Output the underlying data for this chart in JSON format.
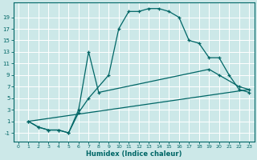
{
  "xlabel": "Humidex (Indice chaleur)",
  "bg_color": "#cce8e8",
  "grid_color": "#b0d8d8",
  "line_color": "#006666",
  "xlim": [
    -0.5,
    23.5
  ],
  "ylim": [
    -2.5,
    21.5
  ],
  "xticks": [
    0,
    1,
    2,
    3,
    4,
    5,
    6,
    7,
    8,
    9,
    10,
    11,
    12,
    13,
    14,
    15,
    16,
    17,
    18,
    19,
    20,
    21,
    22,
    23
  ],
  "yticks": [
    -1,
    1,
    3,
    5,
    7,
    9,
    11,
    13,
    15,
    17,
    19
  ],
  "line1_x": [
    1,
    2,
    3,
    4,
    5,
    6,
    7,
    9,
    10,
    11,
    12,
    13,
    14,
    15,
    16,
    17,
    18,
    19,
    20,
    21,
    22,
    23
  ],
  "line1_y": [
    1,
    0,
    -0.5,
    -0.5,
    -1,
    2.5,
    5,
    9,
    17,
    20,
    20,
    20.5,
    20.5,
    20,
    19,
    15,
    14.5,
    12,
    12,
    9,
    6.5,
    6
  ],
  "line2_x": [
    1,
    2,
    3,
    4,
    5,
    6,
    7,
    8,
    19,
    20,
    22,
    23
  ],
  "line2_y": [
    1,
    0,
    -0.5,
    -0.5,
    -1,
    3,
    13,
    6,
    10,
    9,
    7,
    6.5
  ],
  "line3_x": [
    1,
    23
  ],
  "line3_y": [
    1,
    6.5
  ]
}
